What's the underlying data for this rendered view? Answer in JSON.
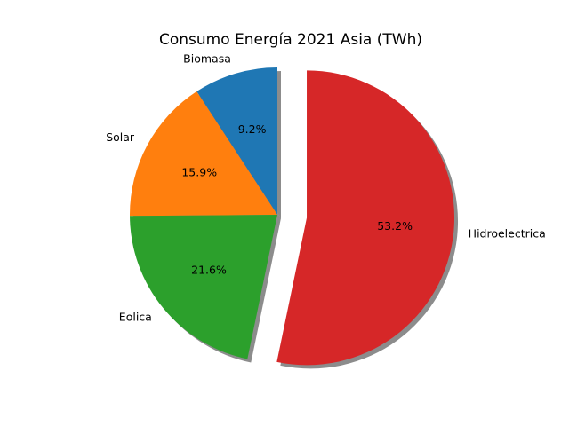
{
  "chart_data": {
    "type": "pie",
    "title": "Consumo Energía 2021 Asia (TWh)",
    "slices": [
      {
        "label": "Biomasa",
        "percent_label": "9.2%",
        "value": 9.2,
        "color": "#1f77b4",
        "exploded": false
      },
      {
        "label": "Solar",
        "percent_label": "15.9%",
        "value": 15.9,
        "color": "#ff7f0e",
        "exploded": false
      },
      {
        "label": "Eolica",
        "percent_label": "21.6%",
        "value": 21.6,
        "color": "#2ca02c",
        "exploded": false
      },
      {
        "label": "Hidroelectrica",
        "percent_label": "53.2%",
        "value": 53.2,
        "color": "#d62728",
        "exploded": true
      }
    ],
    "start_angle_deg": 90,
    "direction": "counterclockwise",
    "shadow": true,
    "legend": "none"
  }
}
